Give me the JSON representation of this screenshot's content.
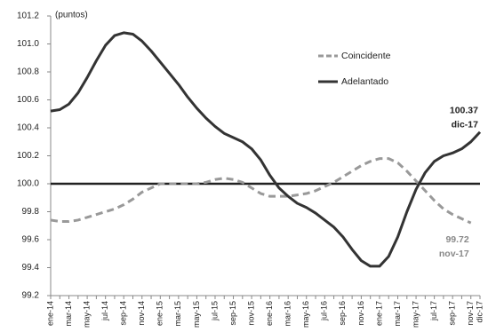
{
  "chart_data": {
    "type": "line",
    "y_unit_label": "(puntos)",
    "categories": [
      "ene-14",
      null,
      "mar-14",
      null,
      "may-14",
      null,
      "jul-14",
      null,
      "sep-14",
      null,
      "nov-14",
      null,
      "ene-15",
      null,
      "mar-15",
      null,
      "may-15",
      null,
      "jul-15",
      null,
      "sep-15",
      null,
      "nov-15",
      null,
      "ene-16",
      null,
      "mar-16",
      null,
      "may-16",
      null,
      "jul-16",
      null,
      "sep-16",
      null,
      "nov-16",
      null,
      "ene-17",
      null,
      "mar-17",
      null,
      "may-17",
      null,
      "jul-17",
      null,
      "sep-17",
      null,
      "nov-17",
      "dic-17"
    ],
    "series": [
      {
        "name": "Coincidente",
        "color": "#999999",
        "dashed": true,
        "values": [
          99.74,
          99.73,
          99.73,
          99.74,
          99.76,
          99.78,
          99.8,
          99.82,
          99.85,
          99.89,
          99.94,
          99.97,
          100.0,
          100.0,
          100.0,
          100.0,
          100.0,
          100.01,
          100.03,
          100.04,
          100.03,
          100.01,
          99.97,
          99.93,
          99.91,
          99.91,
          99.91,
          99.92,
          99.93,
          99.95,
          99.98,
          100.01,
          100.05,
          100.09,
          100.13,
          100.16,
          100.18,
          100.18,
          100.15,
          100.09,
          100.02,
          99.95,
          99.88,
          99.82,
          99.78,
          99.75,
          99.72,
          null
        ]
      },
      {
        "name": "Adelantado",
        "color": "#333333",
        "dashed": false,
        "values": [
          100.52,
          100.53,
          100.57,
          100.65,
          100.76,
          100.88,
          100.99,
          101.06,
          101.08,
          101.07,
          101.02,
          100.95,
          100.87,
          100.79,
          100.71,
          100.62,
          100.54,
          100.47,
          100.41,
          100.36,
          100.33,
          100.3,
          100.25,
          100.17,
          100.06,
          99.97,
          99.91,
          99.86,
          99.83,
          99.79,
          99.74,
          99.69,
          99.62,
          99.53,
          99.45,
          99.41,
          99.41,
          99.48,
          99.62,
          99.8,
          99.96,
          100.08,
          100.16,
          100.2,
          100.22,
          100.25,
          100.3,
          100.37
        ]
      }
    ],
    "hline": 100,
    "annotations": [
      {
        "text": "100.37",
        "series": 1
      },
      {
        "text": "dic-17",
        "series": 1
      },
      {
        "text": "99.72",
        "series": 0
      },
      {
        "text": "nov-17",
        "series": 0
      }
    ],
    "ylim": [
      99.2,
      101.2
    ],
    "yticks": [
      99.2,
      99.4,
      99.6,
      99.8,
      {
        "value": 100,
        "label": "100.0"
      },
      100.2,
      100.4,
      100.6,
      100.8,
      {
        "value": 101,
        "label": "101.0"
      },
      101.2
    ],
    "legend_position": "upper right"
  }
}
